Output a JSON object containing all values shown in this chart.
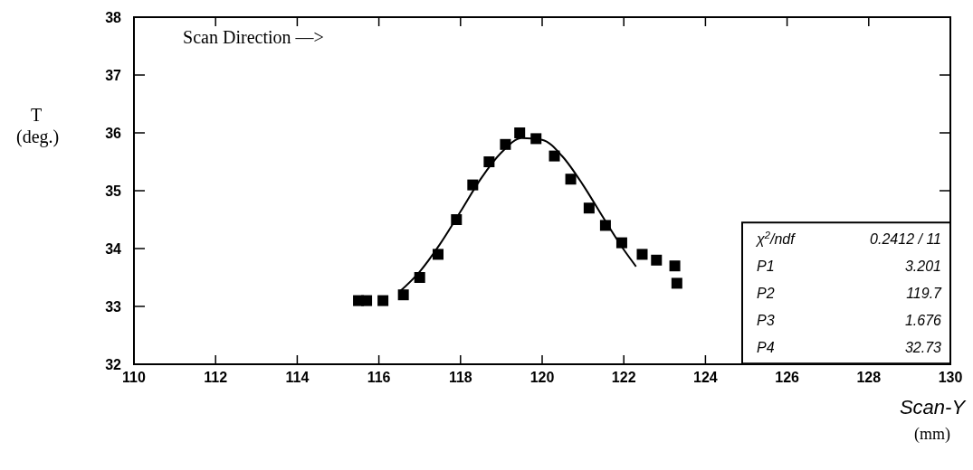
{
  "chart_data": {
    "type": "scatter",
    "xlabel": "Scan-Y\n(mm)",
    "ylabel": "T\n(deg.)",
    "xlim": [
      110,
      130
    ],
    "xticks": [
      110,
      112,
      114,
      116,
      118,
      120,
      122,
      124,
      126,
      128,
      130
    ],
    "ylim": [
      32,
      38
    ],
    "yticks": [
      32,
      33,
      34,
      35,
      36,
      37,
      38
    ],
    "grid": false,
    "marker": "square",
    "series": [
      {
        "color": "#000000",
        "x": [
          115.5,
          115.7,
          116.1,
          116.6,
          117.0,
          117.45,
          117.9,
          118.3,
          118.7,
          119.1,
          119.45,
          119.85,
          120.3,
          120.7,
          121.15,
          121.55,
          121.95,
          122.45,
          122.8,
          123.25,
          123.3
        ],
        "values": [
          33.1,
          33.1,
          33.1,
          33.2,
          33.5,
          33.9,
          34.5,
          35.1,
          35.5,
          35.8,
          36.0,
          35.9,
          35.6,
          35.2,
          34.7,
          34.4,
          34.1,
          33.9,
          33.8,
          33.7,
          33.4
        ]
      },
      {
        "type": "line",
        "color": "#000000",
        "marker": "none",
        "line_style": "solid",
        "x": [
          116.5,
          117,
          117.5,
          118,
          118.5,
          119,
          119.5,
          120,
          120.5,
          121,
          121.5,
          122,
          122.3
        ],
        "values": [
          33.25,
          33.6,
          34.08,
          34.64,
          35.21,
          35.66,
          35.91,
          35.88,
          35.59,
          35.1,
          34.53,
          33.98,
          33.69
        ]
      }
    ],
    "annotations": [
      "Scan Direction  —>",
      "χ$^{2}$/ndf",
      "0.2412  /  11",
      "P1",
      "3.201",
      "P2",
      "119.7",
      "P3",
      "1.676",
      "P4",
      "32.73"
    ]
  }
}
